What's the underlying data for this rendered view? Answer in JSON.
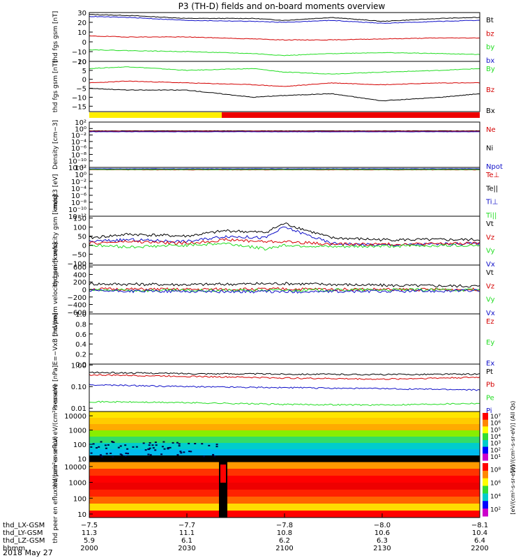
{
  "title": "P3 (TH-D) fields and on-board moments overview",
  "date_label": "2018 May 27",
  "colors": {
    "black": "#000000",
    "red": "#d40000",
    "green": "#22dd22",
    "blue": "#1010c8",
    "yellow": "#ffee00",
    "redbar": "#ee0000"
  },
  "chart_data": [
    {
      "type": "line",
      "ylabel": "thd fgs gsm [nT]",
      "ylim": [
        -20,
        30
      ],
      "yticks": [
        "30",
        "20",
        "10",
        "0",
        "−10",
        "−20"
      ],
      "ytick_values": [
        30,
        20,
        10,
        0,
        -10,
        -20
      ],
      "legend": [
        {
          "name": "Bt",
          "color": "#000000"
        },
        {
          "name": "bz",
          "color": "#d40000"
        },
        {
          "name": "by",
          "color": "#22dd22"
        },
        {
          "name": "bx",
          "color": "#1010c8"
        }
      ],
      "series": [
        {
          "name": "Bt",
          "color": "#000000",
          "x": [
            0,
            0.1,
            0.25,
            0.42,
            0.5,
            0.62,
            0.75,
            0.9,
            1.0
          ],
          "y": [
            28,
            27,
            24,
            24,
            22,
            25,
            21,
            24,
            25
          ]
        },
        {
          "name": "bx",
          "color": "#1010c8",
          "x": [
            0,
            0.1,
            0.25,
            0.42,
            0.5,
            0.62,
            0.75,
            0.9,
            1.0
          ],
          "y": [
            26,
            25,
            22,
            21,
            20,
            22,
            19,
            21,
            22
          ]
        },
        {
          "name": "bz",
          "color": "#d40000",
          "x": [
            0,
            0.1,
            0.25,
            0.42,
            0.5,
            0.62,
            0.75,
            0.9,
            1.0
          ],
          "y": [
            6,
            5,
            5,
            3,
            2,
            2,
            3,
            4,
            4
          ]
        },
        {
          "name": "by",
          "color": "#22dd22",
          "x": [
            0,
            0.1,
            0.25,
            0.42,
            0.5,
            0.62,
            0.75,
            0.9,
            1.0
          ],
          "y": [
            -8,
            -9,
            -10,
            -12,
            -14,
            -12,
            -11,
            -12,
            -13
          ]
        }
      ]
    },
    {
      "type": "line",
      "ylabel": "thd fgs gsm [nT]",
      "ylim": [
        -18,
        10
      ],
      "yticks": [
        "10",
        "5",
        "0",
        "−5",
        "−10",
        "−15"
      ],
      "ytick_values": [
        10,
        5,
        0,
        -5,
        -10,
        -15
      ],
      "legend": [
        {
          "name": "By",
          "color": "#22dd22"
        },
        {
          "name": "Bz",
          "color": "#d40000"
        },
        {
          "name": "Bx",
          "color": "#000000"
        }
      ],
      "series": [
        {
          "name": "By",
          "color": "#22dd22",
          "x": [
            0,
            0.1,
            0.25,
            0.42,
            0.5,
            0.62,
            0.75,
            0.9,
            1.0
          ],
          "y": [
            6,
            7,
            5,
            6,
            4,
            3,
            4,
            5,
            6
          ]
        },
        {
          "name": "Bz",
          "color": "#d40000",
          "x": [
            0,
            0.1,
            0.25,
            0.42,
            0.5,
            0.62,
            0.75,
            0.9,
            1.0
          ],
          "y": [
            -2,
            -1,
            -2,
            -3,
            -4,
            -2,
            -3,
            -2,
            -2
          ]
        },
        {
          "name": "Bx",
          "color": "#000000",
          "x": [
            0,
            0.1,
            0.25,
            0.42,
            0.5,
            0.62,
            0.75,
            0.9,
            1.0
          ],
          "y": [
            -5,
            -6,
            -6,
            -10,
            -9,
            -8,
            -12,
            -10,
            -8
          ]
        }
      ]
    },
    {
      "type": "line",
      "ylabel": "Density [cm−3]",
      "yscale": "log",
      "ylim": [
        1e-12,
        100
      ],
      "yticks": [
        "10²",
        "10⁰",
        "10⁻²",
        "10⁻⁴",
        "10⁻⁶",
        "10⁻⁸",
        "10⁻¹⁰",
        "10⁻¹²"
      ],
      "ytick_values": [
        100,
        1,
        0.01,
        0.0001,
        1e-06,
        1e-08,
        1e-10,
        1e-12
      ],
      "legend": [
        {
          "name": "Ne",
          "color": "#d40000"
        },
        {
          "name": "Ni",
          "color": "#000000"
        },
        {
          "name": "Npot",
          "color": "#1010c8"
        }
      ],
      "series": [
        {
          "name": "Ni",
          "color": "#000000",
          "x": [
            0,
            0.5,
            1.0
          ],
          "y": [
            0.2,
            0.2,
            0.2
          ]
        },
        {
          "name": "Ne",
          "color": "#d40000",
          "x": [
            0,
            0.5,
            1.0
          ],
          "y": [
            0.15,
            0.15,
            0.15
          ]
        },
        {
          "name": "Npot",
          "color": "#1010c8",
          "x": [
            0,
            0.5,
            1.0
          ],
          "y": [
            0.1,
            0.1,
            0.1
          ]
        }
      ]
    },
    {
      "type": "line",
      "ylabel": "moqt3 [eV]",
      "yscale": "log",
      "ylim": [
        1e-12,
        100
      ],
      "yticks": [
        "10²",
        "10⁰",
        "10⁻²",
        "10⁻⁴",
        "10⁻⁶",
        "10⁻⁸",
        "10⁻¹⁰",
        "10⁻¹²"
      ],
      "ytick_values": [
        100,
        1,
        0.01,
        0.0001,
        1e-06,
        1e-08,
        1e-10,
        1e-12
      ],
      "legend": [
        {
          "name": "Te⊥",
          "color": "#d40000"
        },
        {
          "name": "Te||",
          "color": "#000000"
        },
        {
          "name": "Ti⊥",
          "color": "#1010c8"
        },
        {
          "name": "Ti||",
          "color": "#22dd22"
        }
      ],
      "series": [
        {
          "name": "Te||",
          "color": "#000000",
          "x": [
            0,
            0.5,
            1.0
          ],
          "y": [
            30,
            30,
            30
          ]
        },
        {
          "name": "Te⊥",
          "color": "#d40000",
          "x": [
            0,
            0.5,
            1.0
          ],
          "y": [
            20,
            20,
            20
          ]
        },
        {
          "name": "Ti⊥",
          "color": "#1010c8",
          "x": [
            0,
            0.5,
            1.0
          ],
          "y": [
            40,
            40,
            40
          ]
        },
        {
          "name": "Ti||",
          "color": "#22dd22",
          "x": [
            0,
            0.5,
            1.0
          ],
          "y": [
            25,
            25,
            25
          ]
        }
      ]
    },
    {
      "type": "line",
      "ylabel": "thd peim velocity gsm [km/s]",
      "ylim": [
        -110,
        160
      ],
      "yticks": [
        "150",
        "100",
        "50",
        "0",
        "−50",
        "−100"
      ],
      "ytick_values": [
        150,
        100,
        50,
        0,
        -50,
        -100
      ],
      "legend": [
        {
          "name": "Vt",
          "color": "#000000"
        },
        {
          "name": "Vz",
          "color": "#d40000"
        },
        {
          "name": "Vy",
          "color": "#22dd22"
        },
        {
          "name": "Vx",
          "color": "#1010c8"
        }
      ],
      "series": [
        {
          "name": "Vt",
          "color": "#000000",
          "x": [
            0,
            0.1,
            0.25,
            0.35,
            0.45,
            0.5,
            0.62,
            0.75,
            1.0
          ],
          "y": [
            40,
            60,
            50,
            80,
            70,
            120,
            40,
            30,
            30
          ]
        },
        {
          "name": "Vx",
          "color": "#1010c8",
          "x": [
            0,
            0.1,
            0.25,
            0.35,
            0.45,
            0.5,
            0.62,
            0.75,
            1.0
          ],
          "y": [
            20,
            30,
            20,
            50,
            40,
            100,
            10,
            0,
            10
          ]
        },
        {
          "name": "Vz",
          "color": "#d40000",
          "x": [
            0,
            0.1,
            0.25,
            0.35,
            0.45,
            0.5,
            0.62,
            0.75,
            1.0
          ],
          "y": [
            10,
            20,
            10,
            30,
            20,
            20,
            5,
            5,
            10
          ]
        },
        {
          "name": "Vy",
          "color": "#22dd22",
          "x": [
            0,
            0.1,
            0.25,
            0.35,
            0.45,
            0.5,
            0.62,
            0.75,
            1.0
          ],
          "y": [
            0,
            -10,
            0,
            10,
            -20,
            0,
            -10,
            -5,
            0
          ]
        }
      ]
    },
    {
      "type": "line",
      "ylabel": "thd peem velocity gsm [km/s]",
      "ylim": [
        -650,
        650
      ],
      "yticks": [
        "600",
        "400",
        "200",
        "0",
        "−200",
        "−400",
        "−600"
      ],
      "ytick_values": [
        600,
        400,
        200,
        0,
        -200,
        -400,
        -600
      ],
      "legend": [
        {
          "name": "Vt",
          "color": "#000000"
        },
        {
          "name": "Vz",
          "color": "#d40000"
        },
        {
          "name": "Vy",
          "color": "#22dd22"
        },
        {
          "name": "Vx",
          "color": "#1010c8"
        }
      ],
      "series": [
        {
          "name": "Vt",
          "color": "#000000",
          "x": [
            0,
            0.25,
            0.5,
            0.75,
            1.0
          ],
          "y": [
            150,
            130,
            160,
            110,
            90
          ]
        },
        {
          "name": "Vz",
          "color": "#d40000",
          "x": [
            0,
            0.25,
            0.5,
            0.75,
            1.0
          ],
          "y": [
            10,
            0,
            10,
            0,
            0
          ]
        },
        {
          "name": "Vy",
          "color": "#22dd22",
          "x": [
            0,
            0.25,
            0.5,
            0.75,
            1.0
          ],
          "y": [
            -20,
            -30,
            -20,
            -10,
            -10
          ]
        },
        {
          "name": "Vx",
          "color": "#1010c8",
          "x": [
            0,
            0.25,
            0.5,
            0.75,
            1.0
          ],
          "y": [
            -40,
            -50,
            -60,
            -50,
            -30
          ]
        }
      ]
    },
    {
      "type": "line",
      "ylabel": "E=−VxB [mV/m]",
      "ylim": [
        0,
        1.0
      ],
      "yticks": [
        "1.0",
        "0.8",
        "0.6",
        "0.4",
        "0.2",
        "0.0"
      ],
      "ytick_values": [
        1.0,
        0.8,
        0.6,
        0.4,
        0.2,
        0.0
      ],
      "legend": [
        {
          "name": "Ez",
          "color": "#d40000"
        },
        {
          "name": "Ey",
          "color": "#22dd22"
        },
        {
          "name": "Ex",
          "color": "#1010c8"
        }
      ],
      "series": []
    },
    {
      "type": "line",
      "ylabel": "Pressure [nPa]",
      "yscale": "log",
      "ylim": [
        0.007,
        1.1
      ],
      "yticks": [
        "1.00",
        "0.10",
        "0.01"
      ],
      "ytick_values": [
        1.0,
        0.1,
        0.01
      ],
      "legend": [
        {
          "name": "Pt",
          "color": "#000000"
        },
        {
          "name": "Pb",
          "color": "#d40000"
        },
        {
          "name": "Pe",
          "color": "#22dd22"
        },
        {
          "name": "Pi",
          "color": "#1010c8"
        }
      ],
      "series": [
        {
          "name": "Pt",
          "color": "#000000",
          "x": [
            0,
            0.25,
            0.5,
            0.75,
            1.0
          ],
          "y": [
            0.45,
            0.4,
            0.38,
            0.36,
            0.38
          ]
        },
        {
          "name": "Pb",
          "color": "#d40000",
          "x": [
            0,
            0.25,
            0.5,
            0.75,
            1.0
          ],
          "y": [
            0.35,
            0.3,
            0.25,
            0.22,
            0.27
          ]
        },
        {
          "name": "Pi",
          "color": "#1010c8",
          "x": [
            0,
            0.25,
            0.5,
            0.75,
            1.0
          ],
          "y": [
            0.12,
            0.1,
            0.09,
            0.08,
            0.07
          ]
        },
        {
          "name": "Pe",
          "color": "#22dd22",
          "x": [
            0,
            0.25,
            0.5,
            0.75,
            1.0
          ],
          "y": [
            0.02,
            0.018,
            0.015,
            0.014,
            0.017
          ]
        }
      ]
    },
    {
      "type": "heatmap",
      "ylabel": "thd peir en eflux eV/(cm²-s-sr-eV)",
      "yscale": "log",
      "yticks": [
        "10000",
        "1000",
        "100",
        "10"
      ],
      "ytick_values": [
        10000,
        1000,
        100,
        10
      ],
      "colorbar_ticks": [
        "10⁷",
        "10⁶",
        "10⁵",
        "10⁴",
        "10³",
        "10²",
        "10¹"
      ],
      "colorbar_label": "[eV/(cm²-s-sr-eV)] (All Qs)"
    },
    {
      "type": "heatmap",
      "ylabel": "thd peer en eflux eV/(cm²-s-sr-eV)",
      "yscale": "log",
      "yticks": [
        "10000",
        "1000",
        "100",
        "10"
      ],
      "ytick_values": [
        10000,
        1000,
        100,
        10
      ],
      "colorbar_ticks": [
        "10⁸",
        "10⁶",
        "10⁴",
        "10²"
      ],
      "colorbar_label": "[eV/(cm²-s-sr-eV)]"
    }
  ],
  "x_axis": {
    "rows": [
      {
        "label": "thd_LX-GSM",
        "values": [
          "−7.5",
          "−7.7",
          "−7.8",
          "−8.0",
          "−8.1"
        ]
      },
      {
        "label": "thd_LY-GSM",
        "values": [
          "11.3",
          "11.1",
          "10.8",
          "10.6",
          "10.4"
        ]
      },
      {
        "label": "thd_LZ-GSM",
        "values": [
          "5.9",
          "6.1",
          "6.2",
          "6.3",
          "6.4"
        ]
      },
      {
        "label": "hhmm",
        "values": [
          "2000",
          "2030",
          "2100",
          "2130",
          "2200"
        ]
      }
    ]
  }
}
